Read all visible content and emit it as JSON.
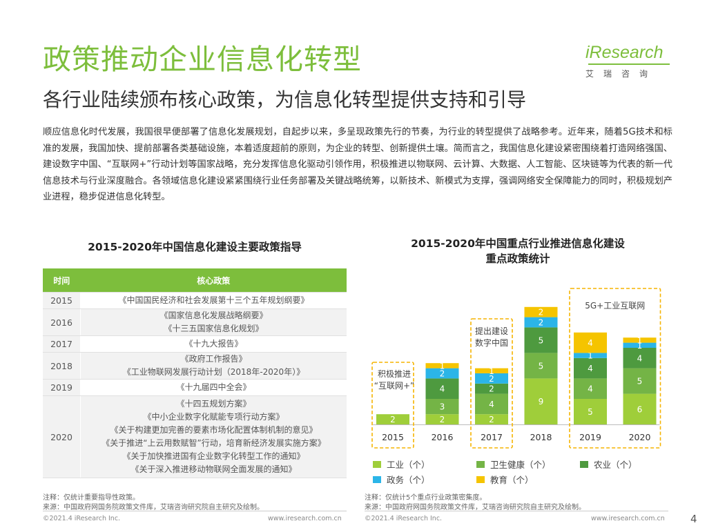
{
  "header": {
    "title": "政策推动企业信息化转型",
    "subtitle": "各行业陆续颁布核心政策，为信息化转型提供支持和引导",
    "logo_brand": "iResearch",
    "logo_cn": "艾瑞咨询"
  },
  "intro": "顺应信息化时代发展，我国很早便部署了信息化发展规划，自起步以来，多呈现政策先行的节奏，为行业的转型提供了战略参考。近年来，随着5G技术和标准的发展，我国加快、提前部署各类基础设施，本着适度超前的原则，为企业的转型、创新提供土壤。简而言之，我国信息化建设紧密围绕着打造网络强国、建设数字中国、“互联网+”行动计划等国家战略，充分发挥信息化驱动引领作用，积极推进以物联网、云计算、大数据、人工智能、区块链等为代表的新一代信息技术与行业深度融合。各领域信息化建设紧紧围绕行业任务部署及关键战略统筹，以新技术、新模式为支撑，强调网络安全保障能力的同时，积极规划产业进程，稳步促进信息化转型。",
  "left": {
    "title": "2015-2020年中国信息化建设主要政策指导",
    "headers": [
      "时间",
      "核心政策"
    ],
    "rows": [
      {
        "year": "2015",
        "policies": [
          "《中国国民经济和社会发展第十三个五年规划纲要》"
        ]
      },
      {
        "year": "2016",
        "policies": [
          "《国家信息化发展战略纲要》",
          "《十三五国家信息化规划》"
        ]
      },
      {
        "year": "2017",
        "policies": [
          "《十九大报告》"
        ]
      },
      {
        "year": "2018",
        "policies": [
          "《政府工作报告》",
          "《工业物联网发展行动计划（2018年-2020年）》"
        ]
      },
      {
        "year": "2019",
        "policies": [
          "《十九届四中全会》"
        ]
      },
      {
        "year": "2020",
        "policies": [
          "《十四五规划方案》",
          "《中小企业数字化赋能专项行动方案》",
          "《关于构建更加完善的要素市场化配置体制机制的意见》",
          "《关于推进“上云用数赋智”行动，培育新经济发展实施方案》",
          "《关于加快推进国有企业数字化转型工作的通知》",
          "《关于深入推进移动物联网全面发展的通知》"
        ]
      }
    ],
    "note": "注释：仅统计重要指导性政策。",
    "source": "来源：中国政府网国务院政策文件库，艾瑞咨询研究院自主研究及绘制。"
  },
  "chart_data": {
    "type": "bar",
    "stacked": true,
    "title": "2015-2020年中国重点行业推进信息化建设重点政策统计",
    "categories": [
      "2015",
      "2016",
      "2017",
      "2018",
      "2019",
      "2020"
    ],
    "series": [
      {
        "name": "工业（个）",
        "values": [
          2,
          2,
          2,
          9,
          5,
          6
        ],
        "color": "#9fce3a"
      },
      {
        "name": "卫生健康（个）",
        "values": [
          0,
          3,
          4,
          5,
          4,
          5
        ],
        "color": "#74b446"
      },
      {
        "name": "农业（个）",
        "values": [
          0,
          4,
          2,
          5,
          4,
          4
        ],
        "color": "#4e9a3f"
      },
      {
        "name": "政务（个）",
        "values": [
          0,
          2,
          2,
          2,
          1,
          1
        ],
        "color": "#2bb5e8"
      },
      {
        "name": "教育（个）",
        "values": [
          0,
          1,
          1,
          2,
          4,
          1
        ],
        "color": "#f5c400"
      }
    ],
    "annotations": [
      {
        "text": "积极推进 “互联网+”",
        "lines": [
          "积极推进",
          "“互联网+”"
        ],
        "category": "2015"
      },
      {
        "text": "提出建设 数字中国",
        "lines": [
          "提出建设",
          "数字中国"
        ],
        "category": "2017"
      },
      {
        "text": "5G+工业互联网",
        "lines": [
          "5G+工业互联网"
        ],
        "category": "2019-2020"
      }
    ],
    "note": "注释：仅统计5个重点行业政策密集度。",
    "source": "来源：中国政府网国务院政策文件库，艾瑞咨询研究院自主研究及绘制。"
  },
  "footer": {
    "copyright": "©2021.4 iResearch Inc.",
    "url": "www.iresearch.com.cn",
    "page": "4"
  }
}
